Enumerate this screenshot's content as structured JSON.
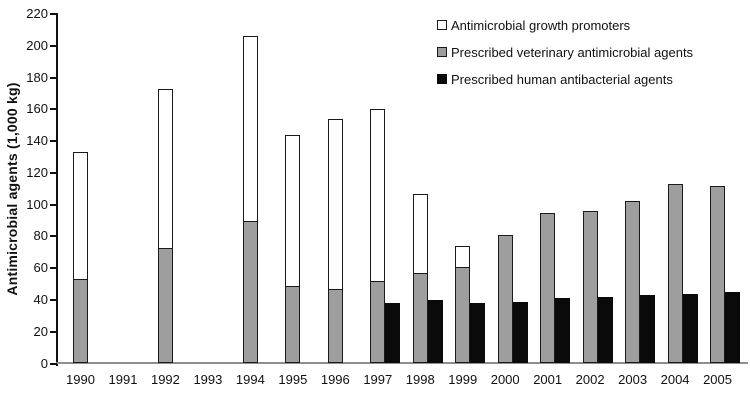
{
  "chart_data": {
    "type": "bar",
    "subtype": "stacked-animal-plus-grouped-human",
    "title": "",
    "xlabel": "",
    "ylabel": "Antimicrobial agents (1,000 kg)",
    "ylim": [
      0,
      220
    ],
    "ytick_step": 20,
    "grid": false,
    "legend_position": "top-right",
    "categories": [
      "1990",
      "1991",
      "1992",
      "1993",
      "1994",
      "1995",
      "1996",
      "1997",
      "1998",
      "1999",
      "2000",
      "2001",
      "2002",
      "2003",
      "2004",
      "2005"
    ],
    "series": [
      {
        "name": "Antimicrobial growth promoters",
        "color": "#ffffff",
        "border_color": "#1a1a1a",
        "stack": "animal",
        "values": [
          80,
          0,
          100,
          0,
          116,
          95,
          107,
          108,
          50,
          13,
          0,
          0,
          0,
          0,
          0,
          0
        ]
      },
      {
        "name": "Prescribed veterinary antimicrobial agents",
        "color": "#9e9e9e",
        "border_color": "#1a1a1a",
        "stack": "animal",
        "values": [
          53,
          0,
          73,
          0,
          90,
          49,
          47,
          52,
          57,
          61,
          81,
          95,
          96,
          102,
          113,
          112
        ]
      },
      {
        "name": "Prescribed human antibacterial agents",
        "color": "#0a0a0a",
        "border_color": "#0a0a0a",
        "stack": "human",
        "values": [
          0,
          0,
          0,
          0,
          0,
          0,
          0,
          38,
          40,
          38,
          39,
          41,
          42,
          43,
          44,
          45
        ]
      }
    ]
  }
}
